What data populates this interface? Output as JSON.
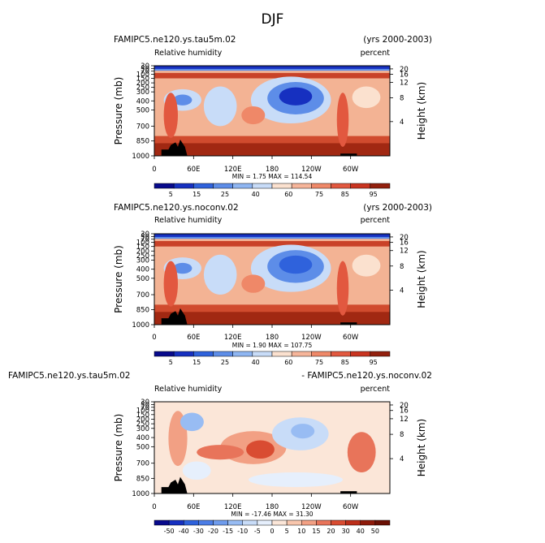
{
  "figure": {
    "title": "DJF"
  },
  "chart_data": [
    {
      "type": "heatmap",
      "case_title": "FAMIPC5.ne120.ys.tau5m.02",
      "years": "(yrs 2000-2003)",
      "variable": "Relative humidity",
      "units": "percent",
      "ylabel": "Pressure (mb)",
      "ylabel_right": "Height (km)",
      "x_ticks": [
        "0",
        "60E",
        "120E",
        "180",
        "120W",
        "60W"
      ],
      "y_ticks": [
        "30",
        "50",
        "70",
        "100",
        "150",
        "200",
        "250",
        "300",
        "400",
        "500",
        "700",
        "850",
        "1000"
      ],
      "height_ticks": [
        "20",
        "16",
        "12",
        "8",
        "4"
      ],
      "stats": {
        "min_label": "MIN =",
        "min": "1.75",
        "max_label": "MAX =",
        "max": "114.54"
      },
      "colorbar": {
        "labels": [
          "5",
          "15",
          "25",
          "40",
          "60",
          "75",
          "85",
          "95"
        ]
      }
    },
    {
      "type": "heatmap",
      "case_title": "FAMIPC5.ne120.ys.noconv.02",
      "years": "(yrs 2000-2003)",
      "variable": "Relative humidity",
      "units": "percent",
      "ylabel": "Pressure (mb)",
      "ylabel_right": "Height (km)",
      "x_ticks": [
        "0",
        "60E",
        "120E",
        "180",
        "120W",
        "60W"
      ],
      "y_ticks": [
        "30",
        "50",
        "70",
        "100",
        "150",
        "200",
        "250",
        "300",
        "400",
        "500",
        "700",
        "850",
        "1000"
      ],
      "height_ticks": [
        "20",
        "16",
        "12",
        "8",
        "4"
      ],
      "stats": {
        "min_label": "MIN =",
        "min": "1.90",
        "max_label": "MAX =",
        "max": "107.75"
      },
      "colorbar": {
        "labels": [
          "5",
          "15",
          "25",
          "40",
          "60",
          "75",
          "85",
          "95"
        ]
      }
    },
    {
      "type": "heatmap",
      "case_title": "FAMIPC5.ne120.ys.tau5m.02",
      "case_title_right": "- FAMIPC5.ne120.ys.noconv.02",
      "variable": "Relative humidity",
      "units": "percent",
      "ylabel": "Pressure (mb)",
      "ylabel_right": "Height (km)",
      "x_ticks": [
        "0",
        "60E",
        "120E",
        "180",
        "120W",
        "60W"
      ],
      "y_ticks": [
        "30",
        "50",
        "70",
        "100",
        "150",
        "200",
        "250",
        "300",
        "400",
        "500",
        "700",
        "850",
        "1000"
      ],
      "height_ticks": [
        "20",
        "16",
        "12",
        "8",
        "4"
      ],
      "stats": {
        "min_label": "MIN =",
        "min": "-17.46",
        "max_label": "MAX =",
        "max": "31.30"
      },
      "colorbar": {
        "labels": [
          "-50",
          "-40",
          "-30",
          "-20",
          "-15",
          "-10",
          "-5",
          "0",
          "5",
          "10",
          "15",
          "20",
          "30",
          "40",
          "50"
        ]
      }
    }
  ]
}
